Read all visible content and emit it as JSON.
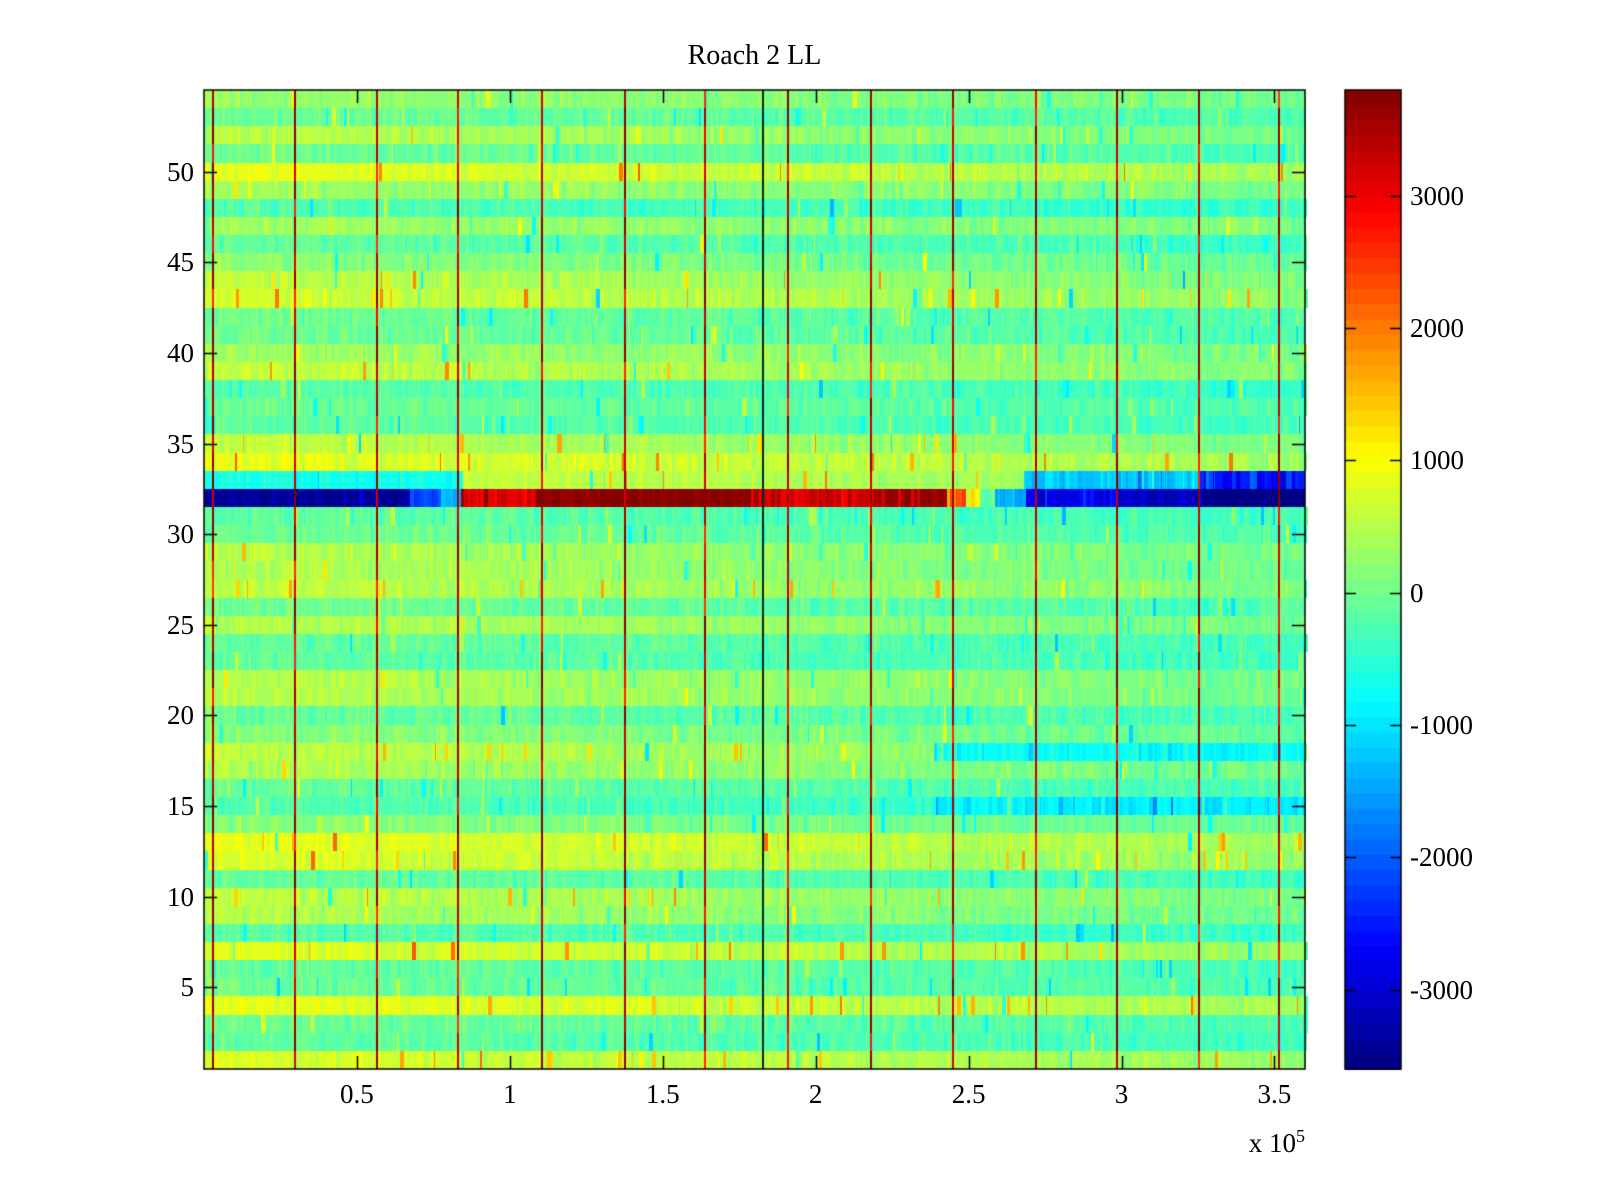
{
  "figure_title": "Roach 2 LL",
  "axes": {
    "x": {
      "tick_labels": [
        "0.5",
        "1",
        "1.5",
        "2",
        "2.5",
        "3",
        "3.5"
      ],
      "tick_values": [
        50000,
        100000,
        150000,
        200000,
        250000,
        300000,
        350000
      ],
      "exponent_prefix": "x 10",
      "exponent": "5"
    },
    "y": {
      "tick_labels": [
        "5",
        "10",
        "15",
        "20",
        "25",
        "30",
        "35",
        "40",
        "45",
        "50"
      ],
      "tick_values": [
        5,
        10,
        15,
        20,
        25,
        30,
        35,
        40,
        45,
        50
      ]
    }
  },
  "colorbar": {
    "tick_labels": [
      "3000",
      "2000",
      "1000",
      "0",
      "-1000",
      "-2000",
      "-3000"
    ],
    "tick_values": [
      3000,
      2000,
      1000,
      0,
      -1000,
      -2000,
      -3000
    ],
    "levels": 64,
    "colormap": "jet"
  },
  "chart_data": {
    "type": "heatmap",
    "title": "Roach 2 LL",
    "xlabel": "",
    "ylabel": "",
    "x_range": [
      0,
      360000
    ],
    "x_exponent_label": "x 10^5",
    "n_rows": 54,
    "y_range": [
      0.5,
      54.5
    ],
    "clim": [
      -3600,
      3800
    ],
    "colormap": "jet",
    "colormap_levels": 64,
    "grid": false,
    "legend_position": "colorbar-right",
    "row_base_values": [
      600,
      -200,
      -100,
      700,
      -100,
      -150,
      650,
      -250,
      300,
      400,
      -150,
      600,
      700,
      100,
      -300,
      -150,
      300,
      400,
      100,
      -150,
      350,
      350,
      -200,
      -150,
      350,
      -100,
      400,
      300,
      350,
      -100,
      -200,
      0,
      0,
      700,
      400,
      -200,
      -100,
      -250,
      450,
      250,
      -100,
      -100,
      550,
      400,
      100,
      -200,
      250,
      -300,
      250,
      700,
      -100,
      350,
      -100,
      200
    ],
    "segment_x_unit": 1000,
    "row_segments": {
      "15": [
        [
          0,
          239,
          -300,
          280
        ],
        [
          239,
          360,
          -800,
          300
        ]
      ],
      "18": [
        [
          0,
          239,
          400,
          280
        ],
        [
          239,
          360,
          -650,
          300
        ]
      ],
      "32": [
        [
          0,
          67,
          -3400,
          380
        ],
        [
          67,
          78,
          -2200,
          300
        ],
        [
          78,
          84,
          -1300,
          260
        ],
        [
          84,
          109,
          3100,
          300
        ],
        [
          109,
          179,
          3700,
          130
        ],
        [
          179,
          223,
          3250,
          380
        ],
        [
          223,
          243,
          3650,
          150
        ],
        [
          243,
          249,
          2400,
          280
        ],
        [
          249,
          254,
          1200,
          280
        ],
        [
          254,
          258,
          -200,
          350
        ],
        [
          258,
          269,
          -1400,
          280
        ],
        [
          269,
          298,
          -2800,
          380
        ],
        [
          298,
          325,
          -3100,
          300
        ],
        [
          325,
          360,
          -3550,
          120
        ]
      ],
      "33": [
        [
          0,
          85,
          -750,
          260
        ],
        [
          85,
          268,
          550,
          230
        ],
        [
          268,
          325,
          -1250,
          350
        ],
        [
          325,
          360,
          -2500,
          500
        ]
      ]
    },
    "event_lines": {
      "red_x": [
        2600,
        29400,
        56200,
        82700,
        110200,
        137300,
        163500,
        190600,
        217800,
        244600,
        271700,
        298200,
        325000,
        351200
      ],
      "dark_x": 182500
    },
    "noise": {
      "seed": 1234,
      "default_amp": 280,
      "outlier_rate": 0.04
    }
  }
}
